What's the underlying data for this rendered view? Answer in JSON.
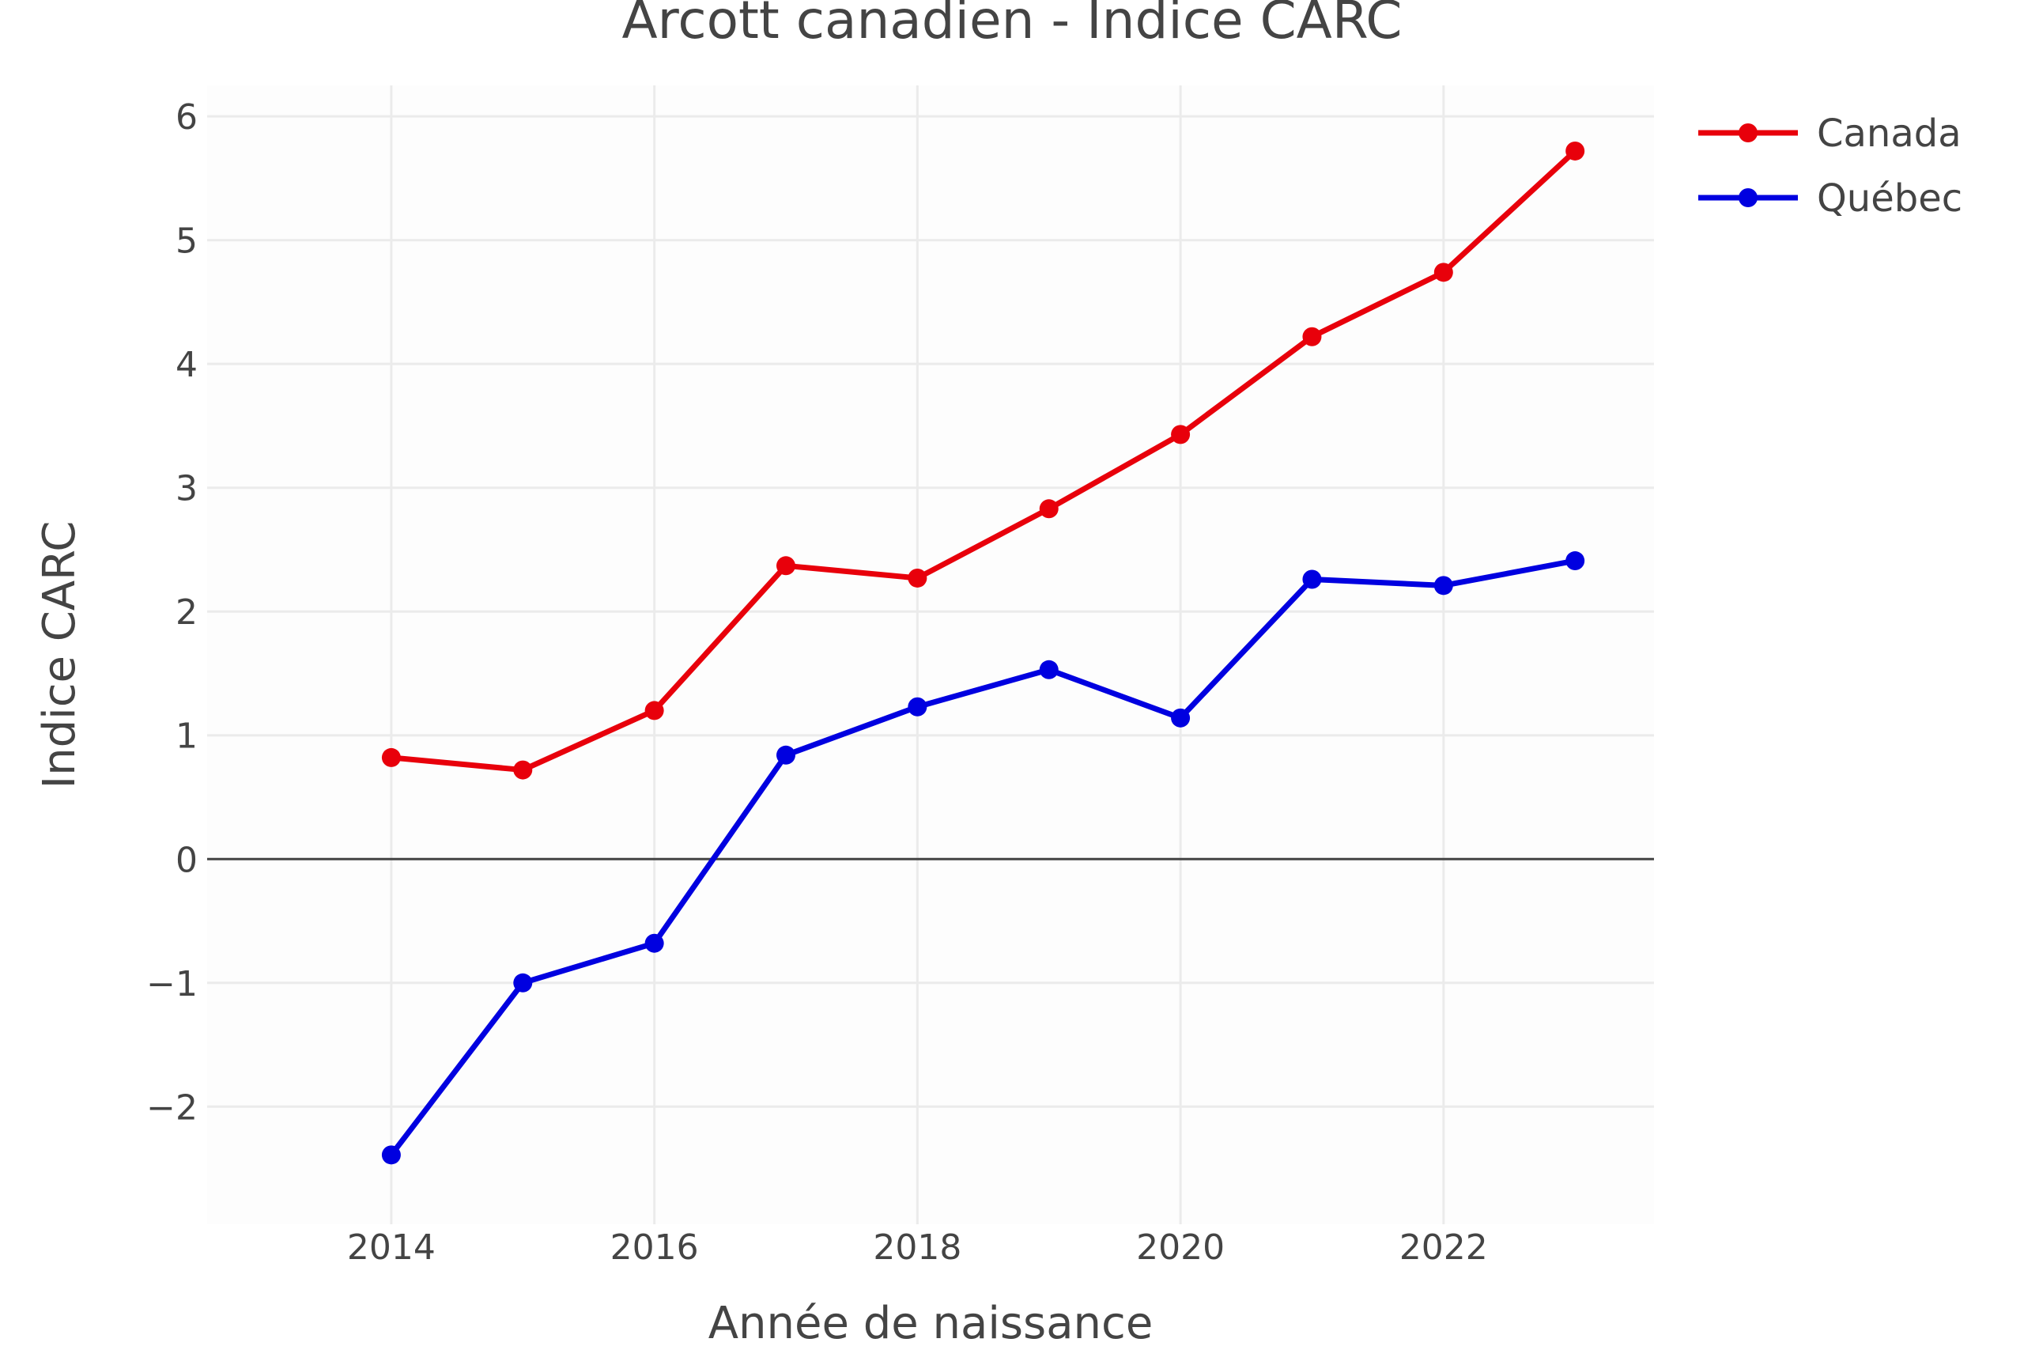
{
  "chart_data": {
    "type": "line",
    "title": "Arcott canadien - Indice CARC",
    "xlabel": "Année de naissance",
    "ylabel": "Indice CARC",
    "x": [
      2014,
      2015,
      2016,
      2017,
      2018,
      2019,
      2020,
      2021,
      2022,
      2023
    ],
    "xlim": [
      2012.6,
      2023.6
    ],
    "ylim": [
      -2.95,
      6.25
    ],
    "x_ticks": [
      2014,
      2016,
      2018,
      2020,
      2022
    ],
    "x_tick_labels": [
      "2014",
      "2016",
      "2018",
      "2020",
      "2022"
    ],
    "y_ticks": [
      -2,
      -1,
      0,
      1,
      2,
      3,
      4,
      5,
      6
    ],
    "y_tick_labels": [
      "−2",
      "−1",
      "0",
      "1",
      "2",
      "3",
      "4",
      "5",
      "6"
    ],
    "grid": true,
    "zero_line": true,
    "legend_position": "top-right",
    "series": [
      {
        "name": "Canada",
        "color": "#e8000b",
        "values": [
          0.82,
          0.72,
          1.2,
          2.37,
          2.27,
          2.83,
          3.43,
          4.22,
          4.74,
          5.72
        ]
      },
      {
        "name": "Québec",
        "color": "#0000e0",
        "values": [
          -2.39,
          -1.0,
          -0.68,
          0.84,
          1.23,
          1.53,
          1.14,
          2.26,
          2.21,
          2.41
        ]
      }
    ]
  }
}
